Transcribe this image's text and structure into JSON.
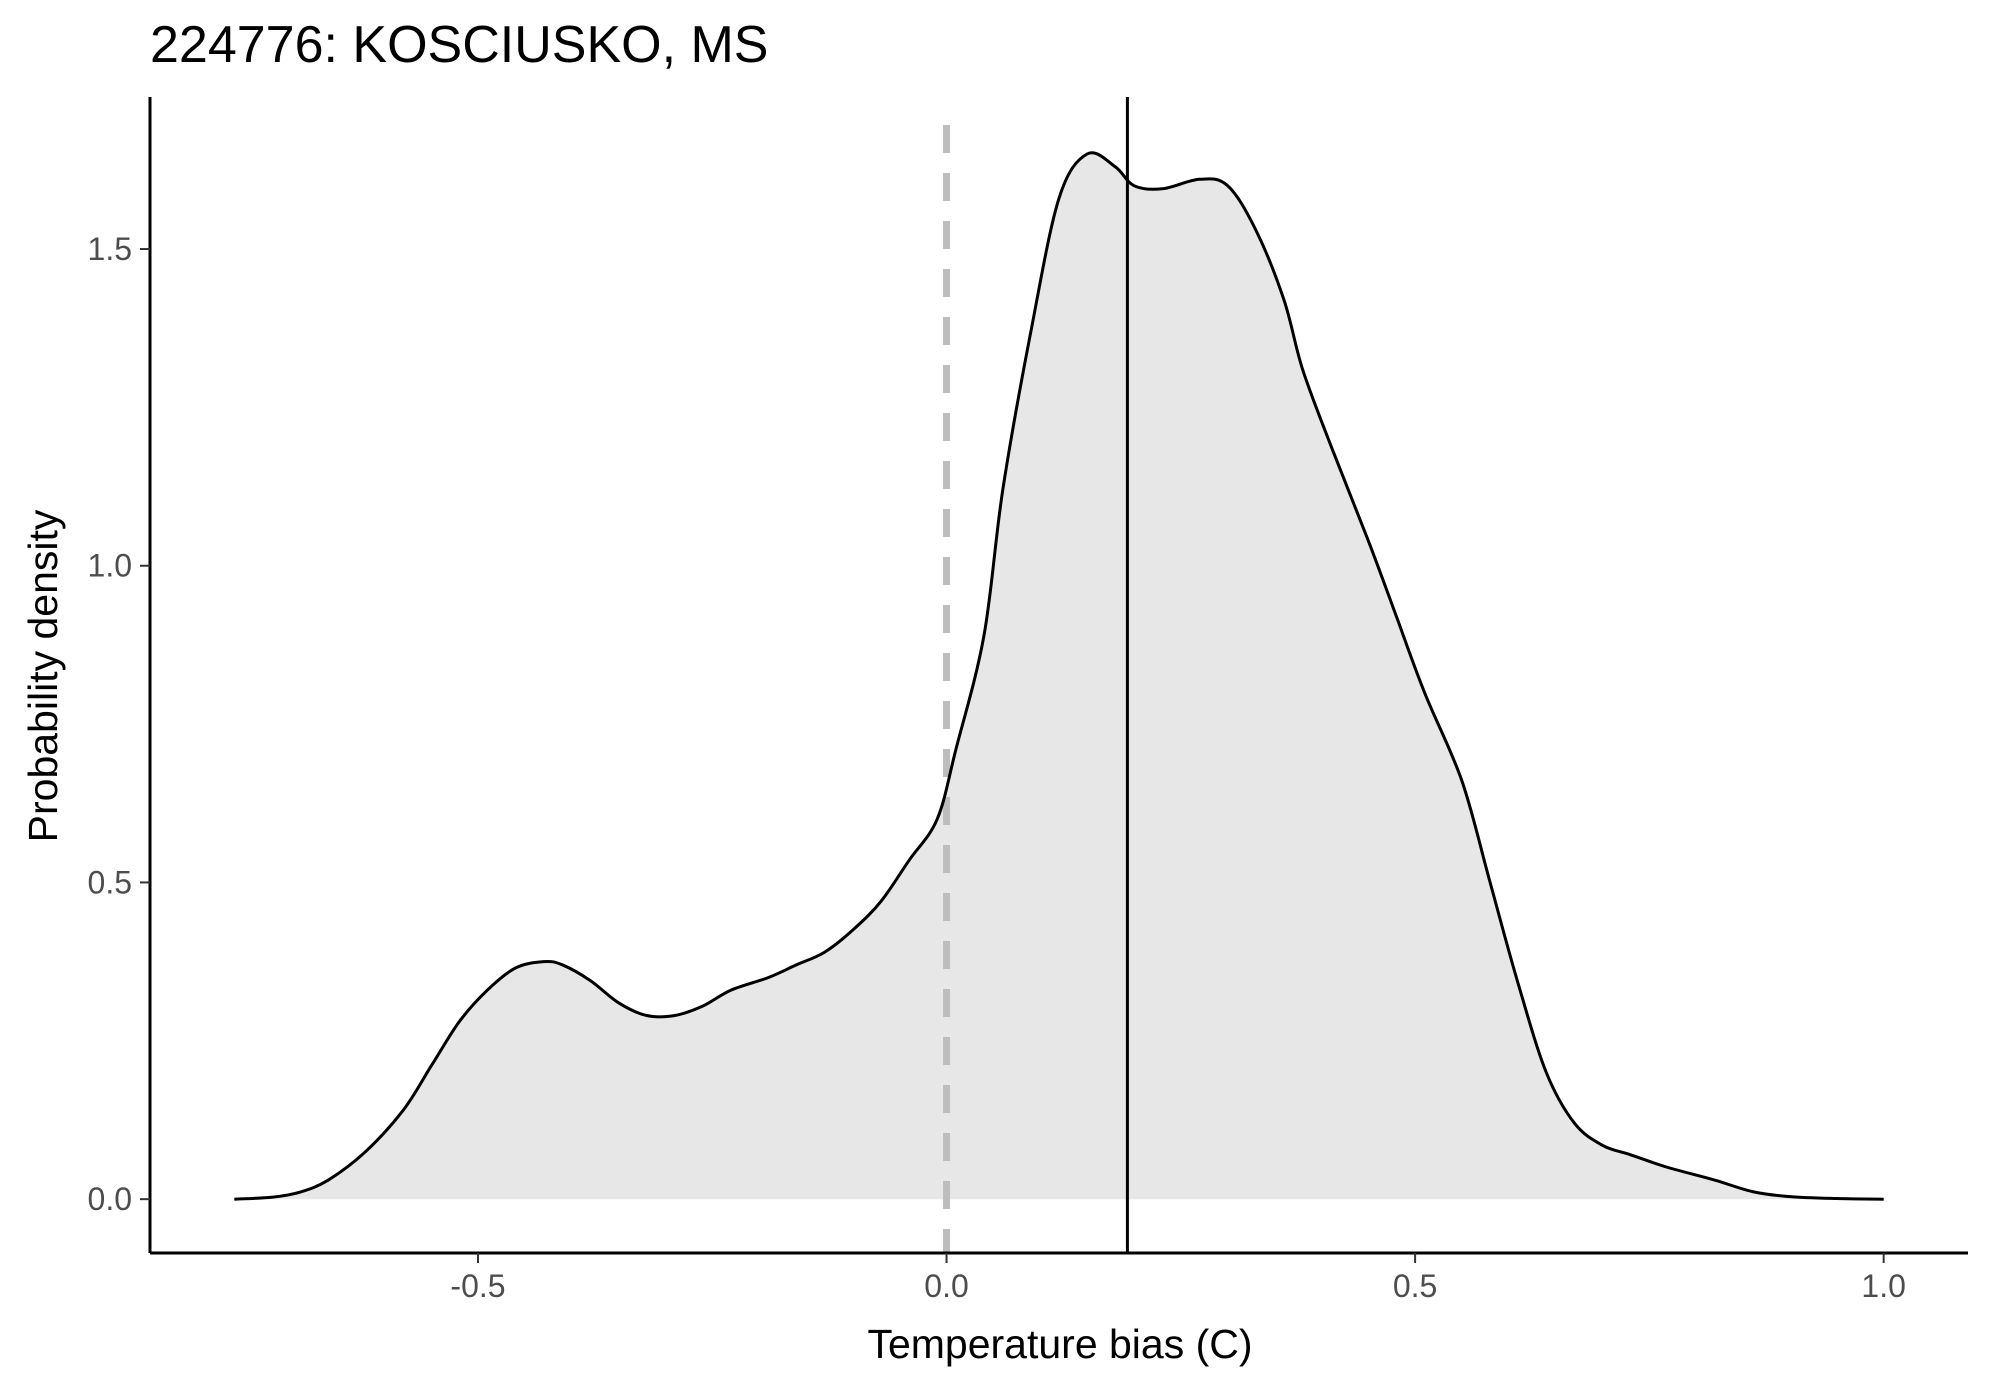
{
  "chart_data": {
    "type": "area",
    "title": "224776: KOSCIUSKO, MS",
    "xlabel": "Temperature bias (C)",
    "ylabel": "Probability density",
    "xlim": [
      -0.85,
      1.09
    ],
    "ylim": [
      -0.085,
      1.74
    ],
    "x_ticks": [
      -0.5,
      0.0,
      0.5,
      1.0
    ],
    "x_tick_labels": [
      "-0.5",
      "0.0",
      "0.5",
      "1.0"
    ],
    "y_ticks": [
      0.0,
      0.5,
      1.0,
      1.5
    ],
    "y_tick_labels": [
      "0.0",
      "0.5",
      "1.0",
      "1.5"
    ],
    "grid": false,
    "fill_color": "#e6e7e6",
    "line_color": "#000000",
    "reference_lines": [
      {
        "x": 0.0,
        "style": "dashed",
        "color": "#bdbdbd"
      },
      {
        "x": 0.193,
        "style": "solid",
        "color": "#000000"
      }
    ],
    "series": [
      {
        "x": [
          -0.76,
          -0.72,
          -0.69,
          -0.66,
          -0.62,
          -0.58,
          -0.55,
          -0.52,
          -0.49,
          -0.46,
          -0.43,
          -0.41,
          -0.38,
          -0.35,
          -0.32,
          -0.29,
          -0.26,
          -0.23,
          -0.19,
          -0.16,
          -0.13,
          -0.1,
          -0.07,
          -0.04,
          -0.01,
          0.01,
          0.04,
          0.06,
          0.09,
          0.12,
          0.15,
          0.18,
          0.2,
          0.23,
          0.27,
          0.3,
          0.33,
          0.36,
          0.38,
          0.41,
          0.45,
          0.48,
          0.51,
          0.55,
          0.58,
          0.61,
          0.64,
          0.67,
          0.7,
          0.73,
          0.77,
          0.82,
          0.86,
          0.9,
          0.95,
          1.0
        ],
        "y": [
          0.0,
          0.003,
          0.011,
          0.03,
          0.075,
          0.14,
          0.21,
          0.28,
          0.33,
          0.365,
          0.375,
          0.37,
          0.345,
          0.31,
          0.29,
          0.29,
          0.305,
          0.33,
          0.35,
          0.37,
          0.39,
          0.425,
          0.47,
          0.535,
          0.6,
          0.71,
          0.89,
          1.12,
          1.37,
          1.58,
          1.65,
          1.63,
          1.6,
          1.595,
          1.61,
          1.6,
          1.53,
          1.42,
          1.31,
          1.19,
          1.04,
          0.92,
          0.8,
          0.66,
          0.5,
          0.34,
          0.2,
          0.12,
          0.085,
          0.07,
          0.05,
          0.03,
          0.012,
          0.004,
          0.001,
          0.0
        ]
      }
    ]
  }
}
